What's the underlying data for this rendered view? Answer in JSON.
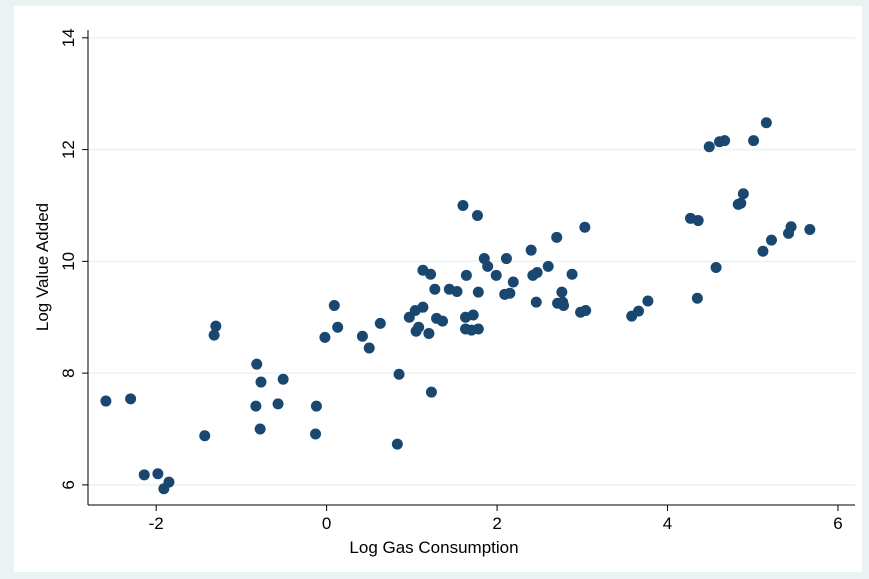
{
  "chart_data": {
    "type": "scatter",
    "xlabel": "Log Gas Consumption",
    "ylabel": "Log Value Added",
    "x": [
      -2.59,
      -2.3,
      -2.14,
      -1.98,
      -1.91,
      -1.85,
      -1.43,
      -1.32,
      -1.3,
      -0.82,
      -0.77,
      -0.83,
      -0.78,
      -0.57,
      -0.51,
      -0.12,
      -0.13,
      -0.02,
      0.09,
      0.13,
      0.42,
      0.5,
      0.63,
      0.85,
      0.83,
      0.97,
      1.04,
      1.05,
      1.08,
      1.13,
      1.13,
      1.22,
      1.2,
      1.23,
      1.27,
      1.29,
      1.36,
      1.44,
      1.53,
      1.6,
      1.63,
      1.63,
      1.64,
      1.7,
      1.72,
      1.77,
      1.78,
      1.78,
      1.85,
      1.89,
      1.99,
      2.11,
      2.09,
      2.15,
      2.19,
      2.4,
      2.42,
      2.47,
      2.46,
      2.6,
      2.7,
      2.71,
      2.76,
      2.77,
      2.78,
      2.88,
      2.98,
      3.03,
      3.04,
      3.58,
      3.66,
      3.77,
      4.27,
      4.36,
      4.35,
      4.49,
      4.57,
      4.61,
      4.67,
      4.83,
      4.86,
      4.89,
      5.01,
      5.12,
      5.16,
      5.22,
      5.42,
      5.45,
      5.67
    ],
    "values": [
      7.5,
      7.54,
      6.18,
      6.2,
      5.93,
      6.05,
      6.88,
      8.68,
      8.84,
      8.16,
      7.84,
      7.41,
      7.0,
      7.45,
      7.89,
      7.41,
      6.91,
      8.64,
      9.21,
      8.82,
      8.66,
      8.45,
      8.89,
      7.98,
      6.73,
      9.0,
      9.12,
      8.75,
      8.82,
      9.18,
      9.84,
      9.77,
      8.71,
      7.66,
      9.5,
      8.98,
      8.93,
      9.5,
      9.46,
      11.0,
      9.0,
      8.79,
      9.75,
      8.77,
      9.04,
      10.82,
      9.45,
      8.79,
      10.05,
      9.91,
      9.75,
      10.05,
      9.41,
      9.43,
      9.63,
      10.2,
      9.75,
      9.8,
      9.27,
      9.91,
      10.43,
      9.25,
      9.45,
      9.27,
      9.21,
      9.77,
      9.09,
      10.61,
      9.12,
      9.02,
      9.11,
      9.29,
      10.77,
      10.73,
      9.34,
      12.05,
      9.89,
      12.14,
      12.16,
      11.02,
      11.04,
      11.21,
      12.16,
      10.18,
      12.48,
      10.38,
      10.5,
      10.62,
      10.57
    ],
    "color": "#1a476f",
    "xlim": [
      -2.8,
      6.2
    ],
    "xticks": [
      -2,
      0,
      2,
      4,
      6
    ],
    "ylim": [
      5.64,
      14.14
    ],
    "yticks": [
      6,
      8,
      10,
      12,
      14
    ],
    "grid": true
  }
}
